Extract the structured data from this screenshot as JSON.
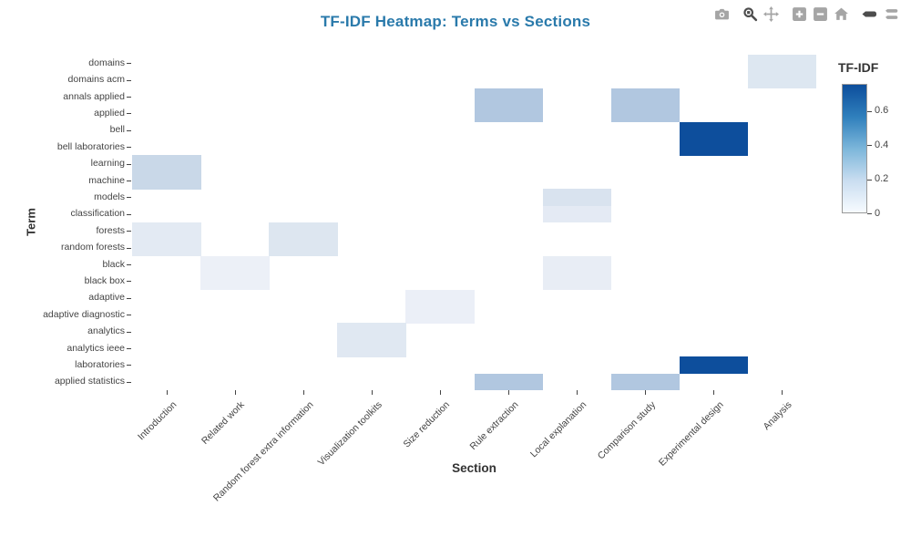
{
  "title": "TF-IDF Heatmap: Terms vs Sections",
  "title_color": "#2a7aab",
  "modebar": {
    "active_color": "#4d4d4d",
    "inactive_color": "#a5a5a5",
    "groups": [
      [
        {
          "icon": "camera-icon",
          "active": false
        }
      ],
      [
        {
          "icon": "zoom-icon",
          "active": true
        },
        {
          "icon": "pan-icon",
          "active": false
        }
      ],
      [
        {
          "icon": "zoom-in-icon",
          "active": false
        },
        {
          "icon": "zoom-out-icon",
          "active": false
        },
        {
          "icon": "home-icon",
          "active": false
        }
      ],
      [
        {
          "icon": "hover-closest-icon",
          "active": true
        },
        {
          "icon": "hover-compare-icon",
          "active": false
        }
      ]
    ]
  },
  "chart_data": {
    "type": "heatmap",
    "title": "TF-IDF Heatmap: Terms vs Sections",
    "xlabel": "Section",
    "ylabel": "Term",
    "grid": false,
    "sections": [
      "Introduction",
      "Related work",
      "Random forest extra information",
      "Visualization toolkits",
      "Size reduction",
      "Rule extraction",
      "Local explanation",
      "Comparison study",
      "Experimental design",
      "Analysis"
    ],
    "terms": [
      "domains",
      "domains acm",
      "annals applied",
      "applied",
      "bell",
      "bell laboratories",
      "learning",
      "machine",
      "models",
      "classification",
      "forests",
      "random forests",
      "black",
      "black box",
      "adaptive",
      "adaptive diagnostic",
      "analytics",
      "analytics ieee",
      "laboratories",
      "applied statistics"
    ],
    "zmin": 0,
    "zmax": 0.76,
    "empty_value": 0,
    "empty_color": "#ffffff",
    "cells": [
      {
        "term": "domains",
        "section": "Analysis",
        "value": 0.11,
        "color": "#dde7f1"
      },
      {
        "term": "domains acm",
        "section": "Analysis",
        "value": 0.11,
        "color": "#dde7f1"
      },
      {
        "term": "annals applied",
        "section": "Rule extraction",
        "value": 0.28,
        "color": "#b1c7e0"
      },
      {
        "term": "annals applied",
        "section": "Comparison study",
        "value": 0.28,
        "color": "#b1c7e0"
      },
      {
        "term": "applied",
        "section": "Rule extraction",
        "value": 0.28,
        "color": "#b1c7e0"
      },
      {
        "term": "applied",
        "section": "Comparison study",
        "value": 0.28,
        "color": "#b1c7e0"
      },
      {
        "term": "bell",
        "section": "Experimental design",
        "value": 0.75,
        "color": "#0d4e9c"
      },
      {
        "term": "bell laboratories",
        "section": "Experimental design",
        "value": 0.75,
        "color": "#0d4e9c"
      },
      {
        "term": "learning",
        "section": "Introduction",
        "value": 0.2,
        "color": "#c9d8e8"
      },
      {
        "term": "machine",
        "section": "Introduction",
        "value": 0.2,
        "color": "#c9d8e8"
      },
      {
        "term": "models",
        "section": "Local explanation",
        "value": 0.13,
        "color": "#d9e3ef"
      },
      {
        "term": "classification",
        "section": "Local explanation",
        "value": 0.08,
        "color": "#e4eaf4"
      },
      {
        "term": "forests",
        "section": "Introduction",
        "value": 0.08,
        "color": "#e3eaf3"
      },
      {
        "term": "forests",
        "section": "Random forest extra information",
        "value": 0.11,
        "color": "#dde6f0"
      },
      {
        "term": "random forests",
        "section": "Introduction",
        "value": 0.08,
        "color": "#e3eaf3"
      },
      {
        "term": "random forests",
        "section": "Random forest extra information",
        "value": 0.11,
        "color": "#dde6f0"
      },
      {
        "term": "black",
        "section": "Related work",
        "value": 0.05,
        "color": "#ecf0f7"
      },
      {
        "term": "black",
        "section": "Local explanation",
        "value": 0.06,
        "color": "#e8edf5"
      },
      {
        "term": "black box",
        "section": "Related work",
        "value": 0.05,
        "color": "#ecf0f7"
      },
      {
        "term": "black box",
        "section": "Local explanation",
        "value": 0.06,
        "color": "#e8edf5"
      },
      {
        "term": "adaptive",
        "section": "Size reduction",
        "value": 0.05,
        "color": "#ebeff7"
      },
      {
        "term": "adaptive diagnostic",
        "section": "Size reduction",
        "value": 0.05,
        "color": "#ebeff7"
      },
      {
        "term": "analytics",
        "section": "Visualization toolkits",
        "value": 0.09,
        "color": "#e0e8f2"
      },
      {
        "term": "analytics ieee",
        "section": "Visualization toolkits",
        "value": 0.09,
        "color": "#e0e8f2"
      },
      {
        "term": "laboratories",
        "section": "Experimental design",
        "value": 0.75,
        "color": "#0d4e9c"
      },
      {
        "term": "applied statistics",
        "section": "Rule extraction",
        "value": 0.28,
        "color": "#b1c7e0"
      },
      {
        "term": "applied statistics",
        "section": "Comparison study",
        "value": 0.28,
        "color": "#b1c7e0"
      }
    ],
    "colorbar": {
      "title": "TF-IDF",
      "tick_labels": [
        "0.6",
        "0.4",
        "0.2",
        "0"
      ],
      "tick_values": [
        0.6,
        0.4,
        0.2,
        0
      ],
      "gradient_bottom_to_top": [
        "#f7fbff",
        "#c9ddf0",
        "#7cb6da",
        "#2f7fbc",
        "#0d4e9c"
      ],
      "legend_position": "right"
    }
  }
}
